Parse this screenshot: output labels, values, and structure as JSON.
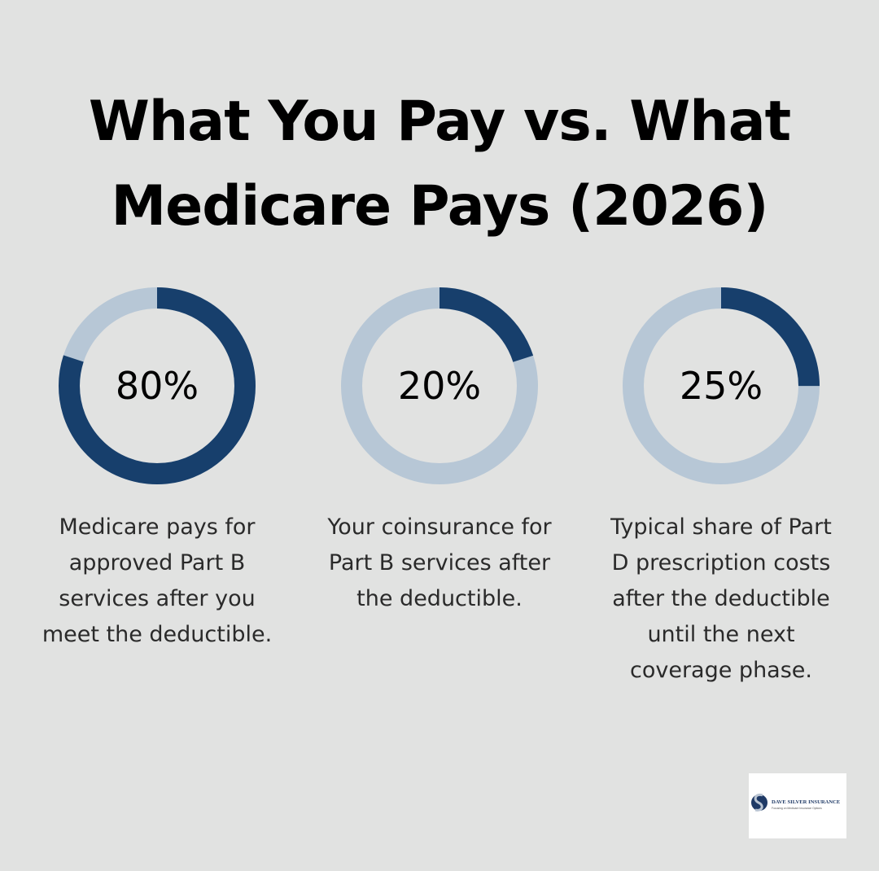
{
  "title": {
    "line1": "What You Pay vs. What",
    "line2": "Medicare Pays (2026)"
  },
  "colors": {
    "background": "#e1e2e1",
    "filled": "#173f6c",
    "track": "#b7c7d6",
    "text": "#000000",
    "caption": "#2a2a2a"
  },
  "chart_data": [
    {
      "type": "pie",
      "value": 80,
      "label": "80%",
      "caption": "Medicare pays for\napproved Part B\nservices after you\nmeet the deductible."
    },
    {
      "type": "pie",
      "value": 20,
      "label": "20%",
      "caption": "Your coinsurance for\nPart B services after\nthe deductible."
    },
    {
      "type": "pie",
      "value": 25,
      "label": "25%",
      "caption": "Typical share of Part\nD prescription costs\nafter the deductible\nuntil the next\ncoverage phase."
    }
  ],
  "logo": {
    "name": "DAVE SILVER INSURANCE",
    "tagline": "Focusing on Medicare Insurance Options",
    "icon": "s-monogram-icon"
  }
}
